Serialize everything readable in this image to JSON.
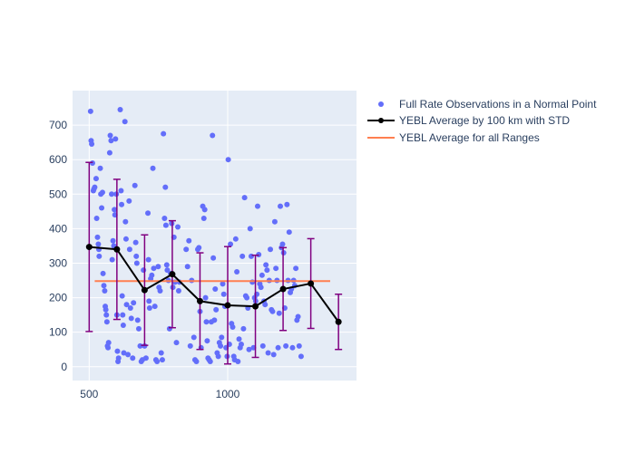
{
  "chart_data": {
    "type": "scatter",
    "title": "",
    "xlabel": "",
    "ylabel": "",
    "xlim": [
      440,
      1465
    ],
    "ylim": [
      -40,
      800
    ],
    "x_ticks": [
      500,
      1000
    ],
    "y_ticks": [
      0,
      100,
      200,
      300,
      400,
      500,
      600,
      700
    ],
    "grid": true,
    "legend_position": "top-right",
    "colors": {
      "plot_bg": "#e5ecf6",
      "grid": "#ffffff",
      "scatter": "#636efa",
      "average": "#000000",
      "overall": "#ff7f50",
      "error_bar": "#800080"
    },
    "legend": {
      "scatter": "Full Rate Observations in a Normal Point",
      "average": "YEBL Average by 100 km with STD",
      "overall": "YEBL Average for all Ranges"
    },
    "series": [
      {
        "legend_key": "scatter",
        "kind": "scatter",
        "points": [
          [
            505,
            740
          ],
          [
            507,
            655
          ],
          [
            509,
            645
          ],
          [
            512,
            590
          ],
          [
            515,
            510
          ],
          [
            517,
            515
          ],
          [
            520,
            520
          ],
          [
            525,
            545
          ],
          [
            527,
            430
          ],
          [
            530,
            375
          ],
          [
            533,
            355
          ],
          [
            535,
            340
          ],
          [
            536,
            320
          ],
          [
            540,
            575
          ],
          [
            542,
            500
          ],
          [
            545,
            460
          ],
          [
            548,
            505
          ],
          [
            550,
            270
          ],
          [
            553,
            235
          ],
          [
            556,
            220
          ],
          [
            558,
            175
          ],
          [
            560,
            165
          ],
          [
            562,
            150
          ],
          [
            564,
            130
          ],
          [
            566,
            60
          ],
          [
            568,
            55
          ],
          [
            570,
            70
          ],
          [
            574,
            620
          ],
          [
            576,
            670
          ],
          [
            579,
            655
          ],
          [
            581,
            500
          ],
          [
            583,
            310
          ],
          [
            586,
            365
          ],
          [
            589,
            350
          ],
          [
            591,
            455
          ],
          [
            593,
            440
          ],
          [
            595,
            660
          ],
          [
            598,
            500
          ],
          [
            600,
            150
          ],
          [
            602,
            45
          ],
          [
            604,
            15
          ],
          [
            606,
            25
          ],
          [
            612,
            745
          ],
          [
            615,
            510
          ],
          [
            617,
            470
          ],
          [
            619,
            205
          ],
          [
            621,
            150
          ],
          [
            623,
            120
          ],
          [
            625,
            40
          ],
          [
            629,
            710
          ],
          [
            631,
            420
          ],
          [
            633,
            370
          ],
          [
            635,
            180
          ],
          [
            640,
            35
          ],
          [
            644,
            480
          ],
          [
            646,
            340
          ],
          [
            649,
            170
          ],
          [
            652,
            140
          ],
          [
            657,
            25
          ],
          [
            660,
            185
          ],
          [
            665,
            525
          ],
          [
            668,
            360
          ],
          [
            670,
            320
          ],
          [
            672,
            300
          ],
          [
            675,
            135
          ],
          [
            679,
            110
          ],
          [
            684,
            60
          ],
          [
            688,
            15
          ],
          [
            692,
            20
          ],
          [
            696,
            280
          ],
          [
            700,
            60
          ],
          [
            705,
            25
          ],
          [
            712,
            445
          ],
          [
            714,
            310
          ],
          [
            716,
            190
          ],
          [
            718,
            170
          ],
          [
            722,
            255
          ],
          [
            726,
            265
          ],
          [
            730,
            575
          ],
          [
            733,
            285
          ],
          [
            737,
            175
          ],
          [
            741,
            20
          ],
          [
            745,
            15
          ],
          [
            749,
            290
          ],
          [
            752,
            230
          ],
          [
            756,
            220
          ],
          [
            760,
            40
          ],
          [
            764,
            20
          ],
          [
            768,
            675
          ],
          [
            772,
            430
          ],
          [
            775,
            520
          ],
          [
            777,
            410
          ],
          [
            780,
            295
          ],
          [
            782,
            280
          ],
          [
            786,
            250
          ],
          [
            790,
            110
          ],
          [
            794,
            270
          ],
          [
            798,
            415
          ],
          [
            802,
            230
          ],
          [
            806,
            375
          ],
          [
            810,
            245
          ],
          [
            815,
            70
          ],
          [
            820,
            405
          ],
          [
            823,
            220
          ],
          [
            826,
            245
          ],
          [
            850,
            340
          ],
          [
            855,
            290
          ],
          [
            860,
            365
          ],
          [
            865,
            60
          ],
          [
            870,
            250
          ],
          [
            878,
            85
          ],
          [
            882,
            20
          ],
          [
            887,
            15
          ],
          [
            892,
            340
          ],
          [
            896,
            345
          ],
          [
            900,
            160
          ],
          [
            904,
            55
          ],
          [
            910,
            465
          ],
          [
            914,
            430
          ],
          [
            917,
            455
          ],
          [
            920,
            200
          ],
          [
            923,
            130
          ],
          [
            926,
            75
          ],
          [
            929,
            25
          ],
          [
            933,
            20
          ],
          [
            937,
            15
          ],
          [
            941,
            130
          ],
          [
            945,
            670
          ],
          [
            948,
            315
          ],
          [
            952,
            135
          ],
          [
            955,
            225
          ],
          [
            958,
            165
          ],
          [
            962,
            40
          ],
          [
            966,
            30
          ],
          [
            970,
            70
          ],
          [
            974,
            60
          ],
          [
            978,
            85
          ],
          [
            982,
            240
          ],
          [
            986,
            210
          ],
          [
            990,
            175
          ],
          [
            994,
            55
          ],
          [
            998,
            30
          ],
          [
            1002,
            600
          ],
          [
            1006,
            65
          ],
          [
            1010,
            355
          ],
          [
            1014,
            125
          ],
          [
            1018,
            115
          ],
          [
            1022,
            30
          ],
          [
            1025,
            20
          ],
          [
            1029,
            370
          ],
          [
            1033,
            275
          ],
          [
            1037,
            15
          ],
          [
            1041,
            80
          ],
          [
            1045,
            55
          ],
          [
            1049,
            65
          ],
          [
            1053,
            320
          ],
          [
            1057,
            110
          ],
          [
            1061,
            490
          ],
          [
            1065,
            205
          ],
          [
            1069,
            200
          ],
          [
            1073,
            170
          ],
          [
            1077,
            50
          ],
          [
            1081,
            400
          ],
          [
            1085,
            320
          ],
          [
            1089,
            245
          ],
          [
            1093,
            55
          ],
          [
            1097,
            200
          ],
          [
            1101,
            190
          ],
          [
            1105,
            210
          ],
          [
            1108,
            465
          ],
          [
            1112,
            325
          ],
          [
            1116,
            240
          ],
          [
            1120,
            230
          ],
          [
            1124,
            265
          ],
          [
            1127,
            60
          ],
          [
            1131,
            190
          ],
          [
            1135,
            180
          ],
          [
            1138,
            295
          ],
          [
            1142,
            280
          ],
          [
            1146,
            40
          ],
          [
            1150,
            250
          ],
          [
            1154,
            340
          ],
          [
            1158,
            165
          ],
          [
            1162,
            160
          ],
          [
            1166,
            35
          ],
          [
            1170,
            420
          ],
          [
            1174,
            285
          ],
          [
            1178,
            250
          ],
          [
            1182,
            55
          ],
          [
            1186,
            155
          ],
          [
            1190,
            465
          ],
          [
            1194,
            345
          ],
          [
            1198,
            355
          ],
          [
            1202,
            330
          ],
          [
            1206,
            170
          ],
          [
            1210,
            60
          ],
          [
            1214,
            470
          ],
          [
            1218,
            250
          ],
          [
            1222,
            390
          ],
          [
            1226,
            215
          ],
          [
            1230,
            225
          ],
          [
            1234,
            55
          ],
          [
            1238,
            250
          ],
          [
            1242,
            235
          ],
          [
            1246,
            285
          ],
          [
            1250,
            135
          ],
          [
            1254,
            145
          ],
          [
            1258,
            60
          ],
          [
            1265,
            30
          ]
        ]
      },
      {
        "legend_key": "average",
        "kind": "line-markers",
        "x": [
          500,
          600,
          700,
          800,
          900,
          1000,
          1100,
          1200,
          1300,
          1400
        ],
        "y": [
          347,
          340,
          222,
          268,
          190,
          178,
          175,
          225,
          241,
          130
        ],
        "std": [
          245,
          203,
          160,
          155,
          140,
          170,
          148,
          120,
          130,
          80
        ]
      },
      {
        "legend_key": "overall",
        "kind": "line",
        "x": [
          520,
          1370
        ],
        "y": [
          248,
          248
        ]
      }
    ]
  }
}
